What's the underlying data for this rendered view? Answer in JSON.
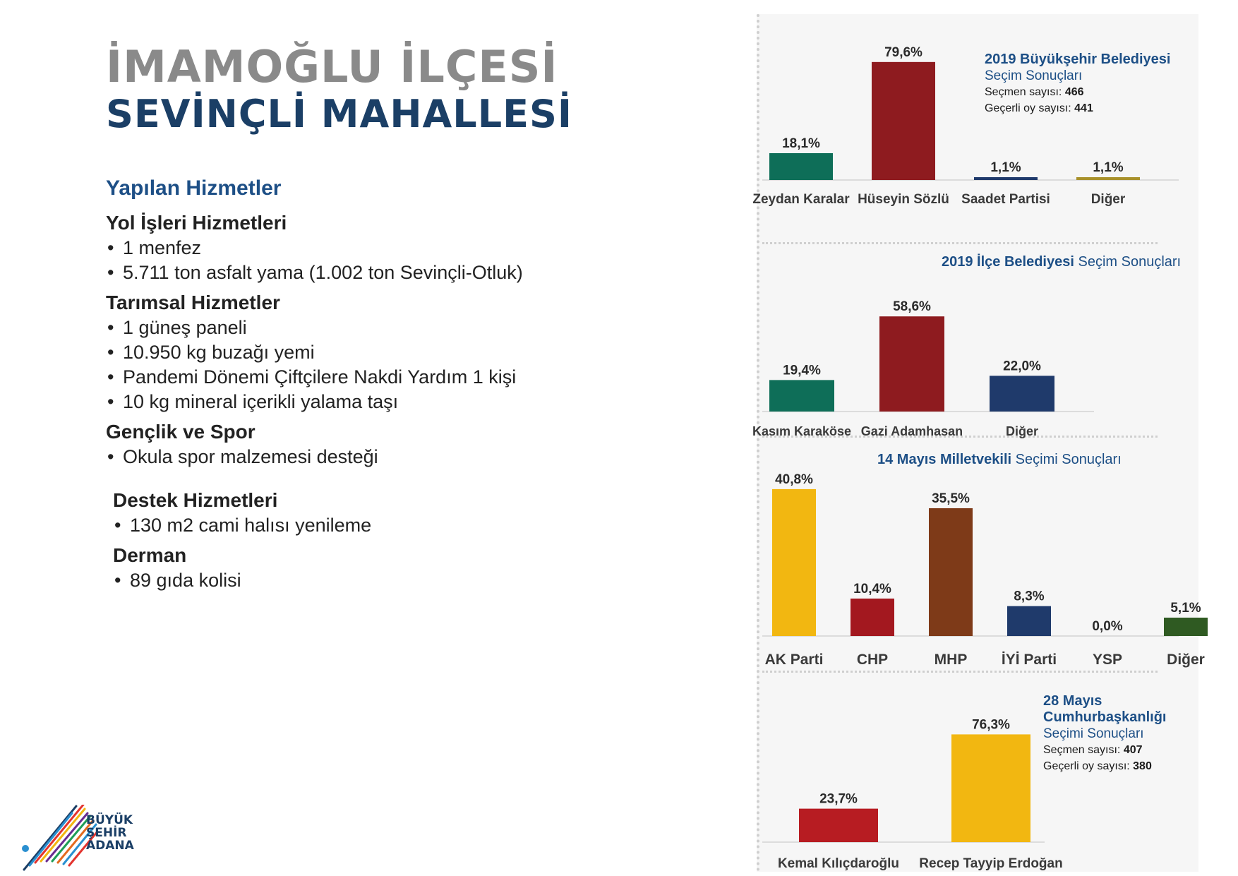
{
  "header": {
    "title_line1": "İMAMOĞLU İLÇESİ",
    "title_line2": "SEVİNÇLİ MAHALLESİ"
  },
  "services": {
    "heading": "Yapılan Hizmetler",
    "groups": [
      {
        "title": "Yol İşleri Hizmetleri",
        "items": [
          "1 menfez",
          "5.711 ton asfalt yama (1.002 ton Sevinçli-Otluk)"
        ]
      },
      {
        "title": "Tarımsal Hizmetler",
        "items": [
          "1 güneş paneli",
          "10.950 kg buzağı yemi",
          "Pandemi Dönemi Çiftçilere Nakdi Yardım 1 kişi",
          "10 kg mineral içerikli yalama taşı"
        ]
      },
      {
        "title": "Gençlik ve Spor",
        "items": [
          "Okula spor malzemesi desteği"
        ]
      },
      {
        "title": "Destek Hizmetleri",
        "items": [
          "130 m2 cami halısı yenileme"
        ]
      },
      {
        "title": "Derman",
        "items": [
          "89 gıda kolisi"
        ]
      }
    ]
  },
  "info": {
    "c1_title": "2019 Büyükşehir Belediyesi",
    "c1_sub": "Seçim Sonuçları",
    "c1_voters_label": "Seçmen sayısı:",
    "c1_voters": "466",
    "c1_valid_label": "Geçerli oy sayısı:",
    "c1_valid": "441",
    "c2_title_bold": "2019 İlçe Belediyesi",
    "c2_title_normal": "Seçim Sonuçları",
    "c3_title_bold": "14 Mayıs Milletvekili",
    "c3_title_normal": "Seçimi Sonuçları",
    "c4_title1": "28 Mayıs",
    "c4_title2": "Cumhurbaşkanlığı",
    "c4_sub": "Seçimi Sonuçları",
    "c4_voters_label": "Seçmen sayısı:",
    "c4_voters": "407",
    "c4_valid_label": "Geçerli oy sayısı:",
    "c4_valid": "380"
  },
  "logo": {
    "line1": "BÜYÜK",
    "line2": "ŞEHİR",
    "line3": "ADANA"
  },
  "chart_data": [
    {
      "type": "bar",
      "title": "2019 Büyükşehir Belediyesi Seçim Sonuçları",
      "categories": [
        "Zeydan Karalar",
        "Hüseyin Sözlü",
        "Saadet Partisi",
        "Diğer"
      ],
      "values": [
        18.1,
        79.6,
        1.1,
        1.1
      ],
      "value_labels": [
        "18,1%",
        "79,6%",
        "1,1%",
        "1,1%"
      ],
      "colors": [
        "#0e6e58",
        "#8e1b1f",
        "#1f3a6b",
        "#a8912b"
      ],
      "unit": "%"
    },
    {
      "type": "bar",
      "title": "2019 İlçe Belediyesi Seçim Sonuçları",
      "categories": [
        "Kasım Karaköse",
        "Gazi Adamhasan",
        "Diğer"
      ],
      "values": [
        19.4,
        58.6,
        22.0
      ],
      "value_labels": [
        "19,4%",
        "58,6%",
        "22,0%"
      ],
      "colors": [
        "#0e6e58",
        "#8e1b1f",
        "#1f3a6b"
      ],
      "unit": "%"
    },
    {
      "type": "bar",
      "title": "14 Mayıs Milletvekili Seçimi Sonuçları",
      "categories": [
        "AK Parti",
        "CHP",
        "MHP",
        "İYİ Parti",
        "YSP",
        "Diğer"
      ],
      "values": [
        40.8,
        10.4,
        35.5,
        8.3,
        0.0,
        5.1
      ],
      "value_labels": [
        "40,8%",
        "10,4%",
        "35,5%",
        "8,3%",
        "0,0%",
        "5,1%"
      ],
      "colors": [
        "#f2b711",
        "#a3181f",
        "#7e3a18",
        "#1f3a6b",
        "#5b2a86",
        "#2f5a22"
      ],
      "unit": "%"
    },
    {
      "type": "bar",
      "title": "28 Mayıs Cumhurbaşkanlığı Seçimi Sonuçları",
      "categories": [
        "Kemal Kılıçdaroğlu",
        "Recep Tayyip Erdoğan"
      ],
      "values": [
        23.7,
        76.3
      ],
      "value_labels": [
        "23,7%",
        "76,3%"
      ],
      "colors": [
        "#b71c22",
        "#f2b711"
      ],
      "unit": "%"
    }
  ]
}
